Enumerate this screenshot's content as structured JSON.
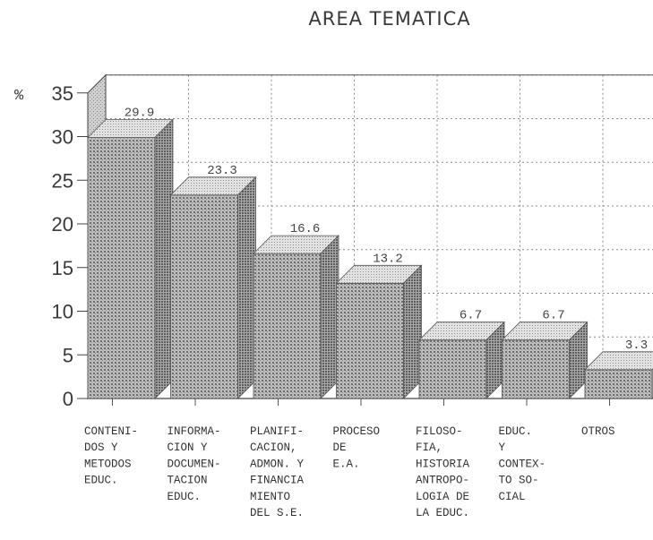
{
  "chart_data": {
    "type": "bar",
    "title": "AREA TEMATICA",
    "ylabel": "%",
    "xlabel": "",
    "ylim": [
      0,
      35
    ],
    "yticks": [
      "0",
      "5",
      "10",
      "15",
      "20",
      "25",
      "30",
      "35"
    ],
    "grid": true,
    "three_d": true,
    "categories": [
      [
        "CONTENI-",
        "DOS Y",
        "METODOS",
        "EDUC."
      ],
      [
        "INFORMA-",
        "CION Y",
        "DOCUMEN-",
        "TACION",
        "EDUC."
      ],
      [
        "PLANIFI-",
        "CACION,",
        "ADMON. Y",
        "FINANCIA",
        "MIENTO",
        "DEL S.E."
      ],
      [
        "PROCESO",
        "DE",
        "E.A."
      ],
      [
        "FILOSO-",
        "FIA,",
        "HISTORIA",
        "ANTROPO-",
        "LOGIA DE",
        "LA EDUC."
      ],
      [
        "EDUC.",
        "Y",
        "CONTEX-",
        "TO SO-",
        "CIAL"
      ],
      [
        "OTROS"
      ]
    ],
    "values": [
      29.9,
      23.3,
      16.6,
      13.2,
      6.7,
      6.7,
      3.3
    ],
    "value_labels": [
      "29.9",
      "23.3",
      "16.6",
      "13.2",
      "6.7",
      "6.7",
      "3.3"
    ]
  }
}
